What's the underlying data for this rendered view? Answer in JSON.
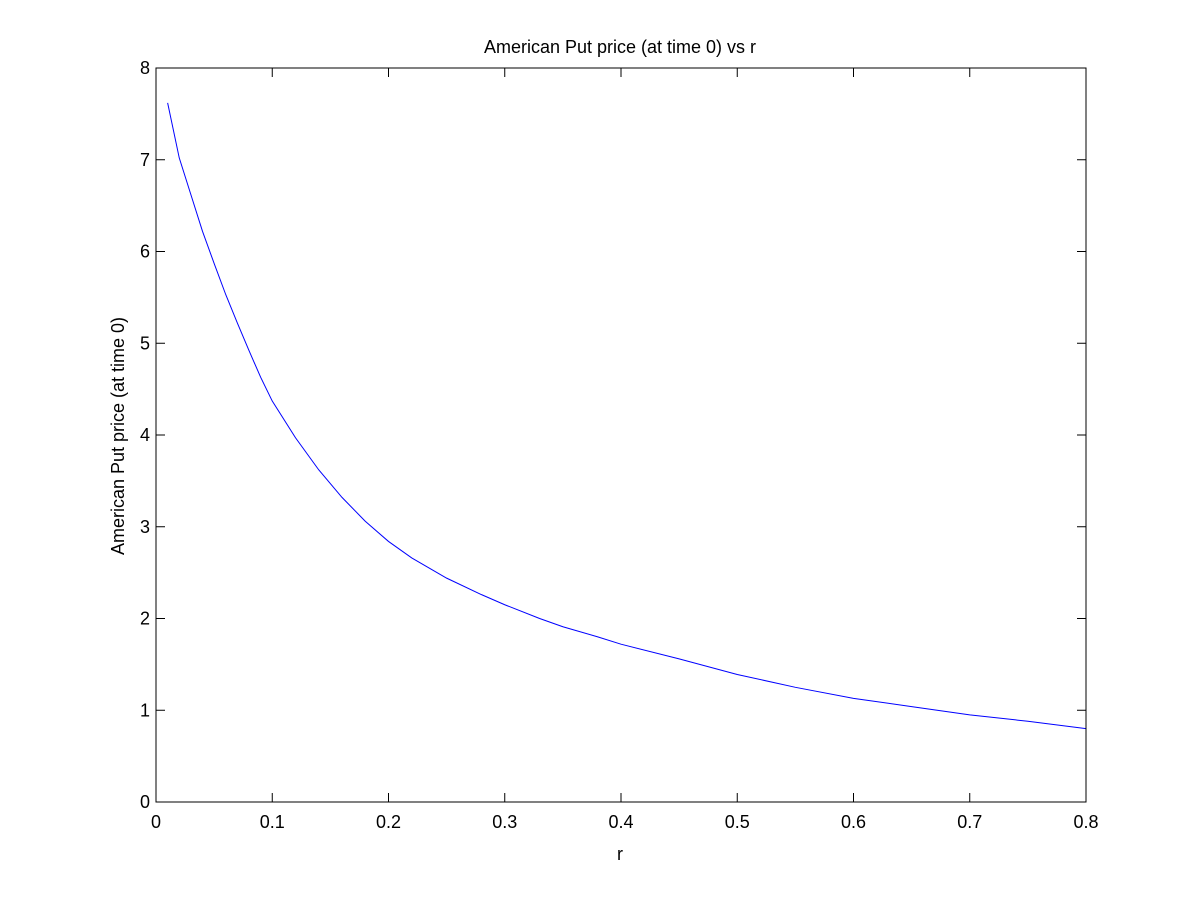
{
  "chart_data": {
    "type": "line",
    "title": "American Put price (at time 0) vs r",
    "xlabel": "r",
    "ylabel": "American Put price (at time 0)",
    "xlim": [
      0,
      0.8
    ],
    "ylim": [
      0,
      8
    ],
    "xticks": [
      0,
      0.1,
      0.2,
      0.3,
      0.4,
      0.5,
      0.6,
      0.7,
      0.8
    ],
    "xtick_labels": [
      "0",
      "0.1",
      "0.2",
      "0.3",
      "0.4",
      "0.5",
      "0.6",
      "0.7",
      "0.8"
    ],
    "yticks": [
      0,
      1,
      2,
      3,
      4,
      5,
      6,
      7,
      8
    ],
    "ytick_labels": [
      "0",
      "1",
      "2",
      "3",
      "4",
      "5",
      "6",
      "7",
      "8"
    ],
    "grid": false,
    "box": true,
    "series": [
      {
        "color": "#0000ff",
        "x": [
          0.01,
          0.02,
          0.03,
          0.04,
          0.05,
          0.06,
          0.07,
          0.08,
          0.09,
          0.1,
          0.12,
          0.14,
          0.16,
          0.18,
          0.2,
          0.22,
          0.25,
          0.28,
          0.3,
          0.33,
          0.35,
          0.38,
          0.4,
          0.45,
          0.5,
          0.55,
          0.6,
          0.65,
          0.7,
          0.75,
          0.8
        ],
        "y": [
          7.62,
          7.02,
          6.62,
          6.22,
          5.87,
          5.53,
          5.22,
          4.92,
          4.63,
          4.37,
          3.97,
          3.62,
          3.32,
          3.06,
          2.84,
          2.66,
          2.44,
          2.26,
          2.15,
          2.0,
          1.91,
          1.8,
          1.72,
          1.56,
          1.39,
          1.25,
          1.13,
          1.04,
          0.95,
          0.88,
          0.8
        ]
      }
    ]
  }
}
